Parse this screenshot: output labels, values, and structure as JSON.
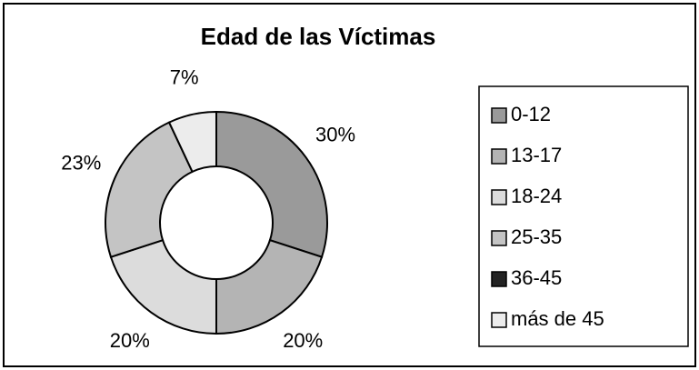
{
  "chart_data": {
    "type": "donut",
    "title": "Edad de las Víctimas",
    "categories": [
      "0-12",
      "13-17",
      "18-24",
      "25-35",
      "36-45",
      "más de 45"
    ],
    "values": [
      30,
      20,
      20,
      23,
      0,
      7
    ],
    "value_labels": [
      "30%",
      "20%",
      "20%",
      "23%",
      null,
      "7%"
    ],
    "colors": [
      "#9a9a9a",
      "#b4b4b4",
      "#dcdcdc",
      "#c4c4c4",
      "#222222",
      "#ececec"
    ],
    "legend": "right"
  }
}
